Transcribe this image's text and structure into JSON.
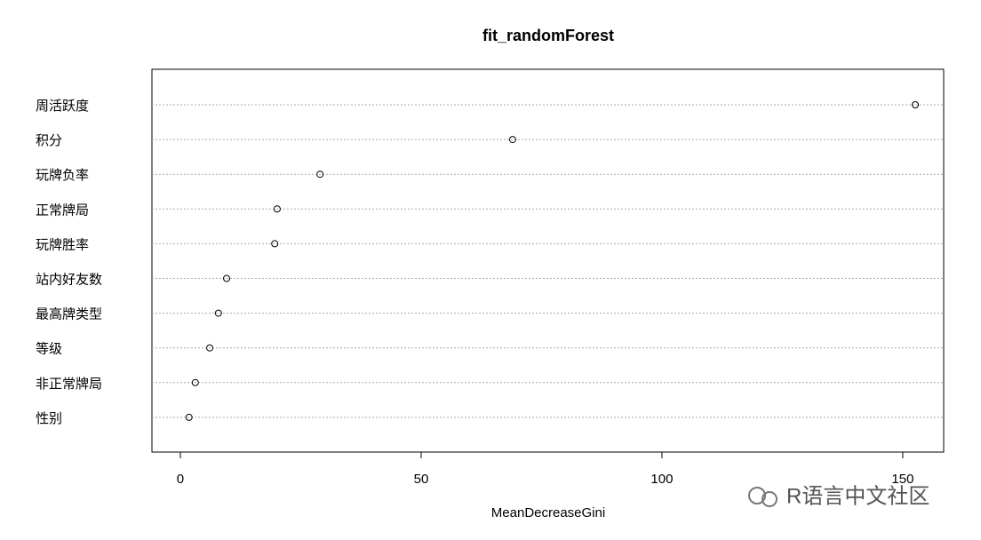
{
  "chart_data": {
    "type": "dotchart",
    "title": "fit_randomForest",
    "x_label": "MeanDecreaseGini",
    "categories": [
      "周活跃度",
      "积分",
      "玩牌负率",
      "正常牌局",
      "玩牌胜率",
      "站内好友数",
      "最高牌类型",
      "等级",
      "非正常牌局",
      "性别"
    ],
    "values": [
      152.6,
      69.0,
      29.0,
      20.1,
      19.6,
      9.6,
      7.9,
      6.1,
      3.1,
      1.8
    ],
    "color": "#000000",
    "xlim": [
      -5.9,
      158.5
    ],
    "xticks": [
      0,
      50,
      100,
      150
    ],
    "grid": true
  },
  "watermark": "R语言中文社区"
}
